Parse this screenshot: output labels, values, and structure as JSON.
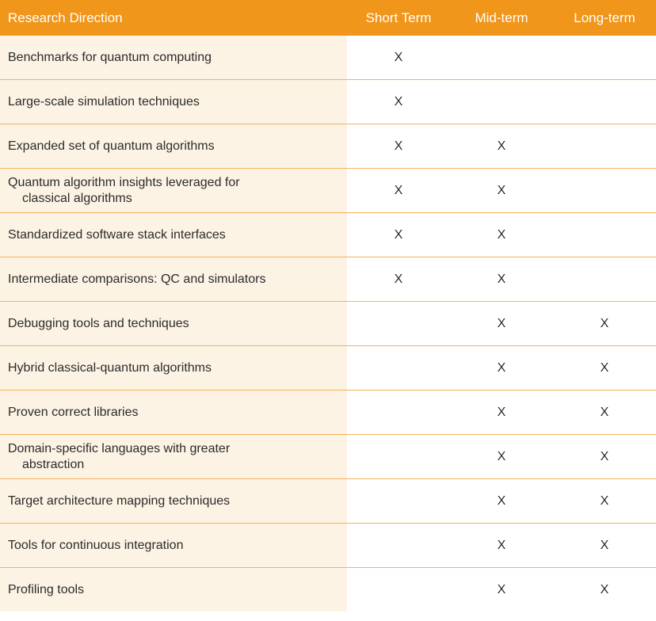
{
  "table": {
    "header": [
      "Research Direction",
      "Short Term",
      "Mid-term",
      "Long-term"
    ],
    "rows": [
      [
        "Benchmarks for quantum computing",
        "X",
        null,
        null
      ],
      [
        "Large-scale simulation techniques",
        "X",
        null,
        null
      ],
      [
        "Expanded set of quantum algorithms",
        "X",
        "X",
        null
      ],
      [
        "Quantum algorithm insights leveraged for\nclassical algorithms",
        "X",
        "X",
        null
      ],
      [
        "Standardized software stack interfaces",
        "X",
        "X",
        null
      ],
      [
        "Intermediate comparisons: QC and simulators",
        "X",
        "X",
        null
      ],
      [
        "Debugging tools and techniques",
        null,
        "X",
        "X"
      ],
      [
        "Hybrid classical-quantum algorithms",
        null,
        "X",
        "X"
      ],
      [
        "Proven correct libraries",
        null,
        "X",
        "X"
      ],
      [
        "Domain-specific languages with greater\nabstraction",
        null,
        "X",
        "X"
      ],
      [
        "Target architecture mapping techniques",
        null,
        "X",
        "X"
      ],
      [
        "Tools for continuous integration",
        null,
        "X",
        "X"
      ],
      [
        "Profiling tools",
        null,
        "X",
        "X"
      ]
    ]
  }
}
